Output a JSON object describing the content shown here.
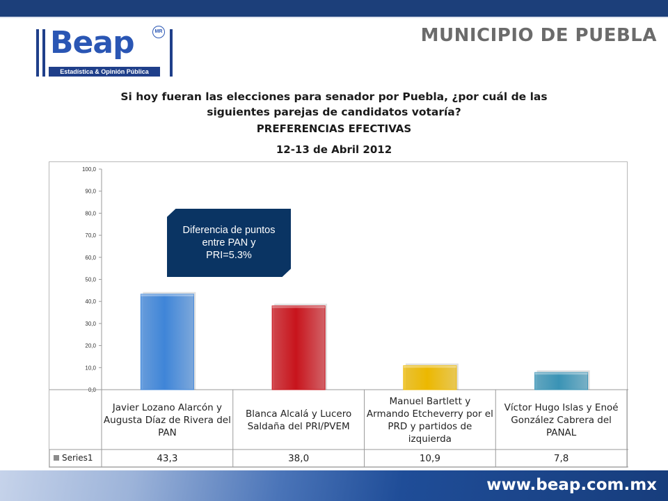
{
  "header": {
    "municipality": "MUNICIPIO DE PUEBLA"
  },
  "logo": {
    "wordmark": "Beap",
    "mark": "MR",
    "tagline": "Estadística & Opinión Pública"
  },
  "callout": {
    "text": "Diferencia de puntos entre PAN y PRI=5.3%"
  },
  "footer": {
    "url": "www.beap.com.mx"
  },
  "colors": {
    "bar_colors": [
      "#3f85d8",
      "#c8141c",
      "#ecb800",
      "#3a93b5"
    ],
    "accent_navy": "#0a3463"
  },
  "chart_data": {
    "type": "bar",
    "title": "Si hoy fueran las elecciones para senador por Puebla, ¿por cuál de las siguientes parejas de candidatos votaría?",
    "subtitle": "PREFERENCIAS EFECTIVAS",
    "date": "12-13 de Abril 2012",
    "categories": [
      "Javier Lozano Alarcón y Augusta Díaz de Rivera del PAN",
      "Blanca Alcalá y Lucero Saldaña del PRI/PVEM",
      "Manuel Bartlett y Armando Etcheverry por el PRD y partidos de izquierda",
      "Víctor Hugo Islas y Enoé González Cabrera del PANAL"
    ],
    "series": [
      {
        "name": "Series1",
        "values": [
          43.3,
          38.0,
          10.9,
          7.8
        ]
      }
    ],
    "value_labels": [
      "43,3",
      "38,0",
      "10,9",
      "7,8"
    ],
    "ylim": [
      0,
      100
    ],
    "yticks": [
      "0,0",
      "10,0",
      "20,0",
      "30,0",
      "40,0",
      "50,0",
      "60,0",
      "70,0",
      "80,0",
      "90,0",
      "100,0"
    ],
    "xlabel": "",
    "ylabel": "",
    "grid": false,
    "legend": "data-table"
  }
}
